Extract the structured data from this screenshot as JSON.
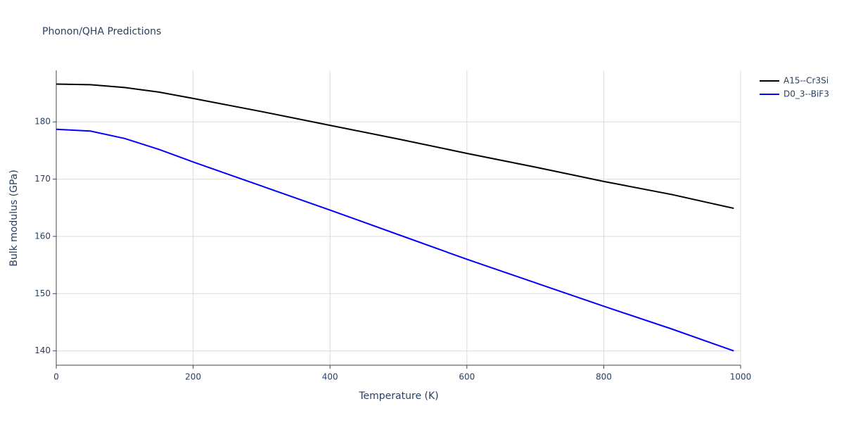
{
  "chart_data": {
    "type": "line",
    "title": "Phonon/QHA Predictions",
    "x_label": "Temperature (K)",
    "y_label": "Bulk modulus (GPa)",
    "x": [
      0,
      50,
      100,
      150,
      200,
      300,
      400,
      500,
      600,
      700,
      800,
      900,
      990
    ],
    "series": [
      {
        "name": "A15--Cr3Si",
        "color": "#000000",
        "values": [
          186.6,
          186.5,
          186.0,
          185.2,
          184.1,
          181.8,
          179.4,
          177.0,
          174.5,
          172.1,
          169.6,
          167.3,
          164.9
        ]
      },
      {
        "name": "D0_3--BiF3",
        "color": "#0000ff",
        "values": [
          178.7,
          178.4,
          177.1,
          175.2,
          173.0,
          168.8,
          164.6,
          160.3,
          156.0,
          151.9,
          147.8,
          143.8,
          140.0
        ]
      }
    ],
    "xlim": [
      0,
      1000
    ],
    "xticks": [
      0,
      200,
      400,
      600,
      800,
      1000
    ],
    "ylim": [
      137.5,
      189
    ],
    "yticks": [
      140,
      150,
      160,
      170,
      180
    ],
    "grid": true,
    "legend": "right"
  }
}
